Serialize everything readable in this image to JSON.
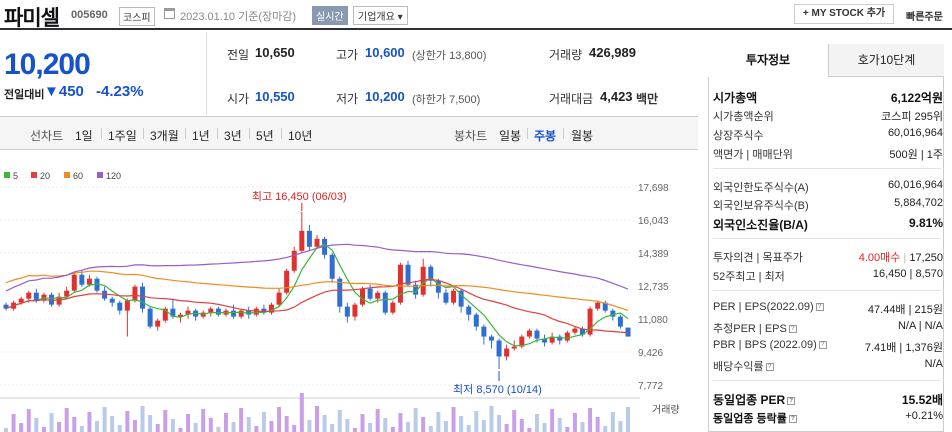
{
  "header": {
    "stock_name": "파미셀",
    "stock_code": "005690",
    "market": "코스피",
    "date_text": "2023.01.10 기준(장마감)",
    "realtime": "실시간",
    "company_overview": "기업개요 ▾",
    "mystock_button": "+ MY STOCK 추가",
    "quick_order": "빠른주문"
  },
  "price": {
    "current": "10,200",
    "change_label": "전일대비",
    "change_amount": "▼450",
    "change_percent": "-4.23%"
  },
  "summary": {
    "prev_close_label": "전일",
    "prev_close": "10,650",
    "high_label": "고가",
    "high": "10,600",
    "upper_limit": "(상한가 13,800)",
    "volume_label": "거래량",
    "volume": "426,989",
    "open_label": "시가",
    "open": "10,550",
    "low_label": "저가",
    "low": "10,200",
    "lower_limit": "(하한가 7,500)",
    "amount_label": "거래대금",
    "amount": "4,423",
    "amount_unit": "백만"
  },
  "period_tabs": {
    "line_label": "선차트",
    "line": [
      "1일",
      "1주일",
      "3개월",
      "1년",
      "3년",
      "5년",
      "10년"
    ],
    "candle_label": "봉차트",
    "candle": [
      "일봉",
      "주봉",
      "월봉"
    ],
    "selected_candle": "주봉"
  },
  "chart_data": {
    "type": "candlestick",
    "legend": [
      {
        "name": "5",
        "color": "#3ab83a"
      },
      {
        "name": "20",
        "color": "#e04040"
      },
      {
        "name": "60",
        "color": "#f08c20"
      },
      {
        "name": "120",
        "color": "#9a5cc9"
      }
    ],
    "y_ticks": [
      "17,698",
      "16,043",
      "14,389",
      "12,735",
      "11,080",
      "9,426",
      "7,772"
    ],
    "ylim": [
      7772,
      17698
    ],
    "high_annotation": "최고 16,450 (06/03)",
    "low_annotation": "최저 8,570 (10/14)",
    "volume_label": "거래량",
    "candles": [
      [
        11800,
        11600,
        11900,
        11500
      ],
      [
        11600,
        11900,
        12000,
        11500
      ],
      [
        11900,
        12100,
        12200,
        11800
      ],
      [
        12100,
        12400,
        12500,
        11900
      ],
      [
        12400,
        12000,
        12600,
        11900
      ],
      [
        12000,
        12300,
        12400,
        11900
      ],
      [
        12300,
        11800,
        12400,
        11700
      ],
      [
        11800,
        12200,
        12400,
        11700
      ],
      [
        12200,
        12500,
        12700,
        12100
      ],
      [
        12500,
        13300,
        13400,
        12400
      ],
      [
        13300,
        12800,
        13500,
        12700
      ],
      [
        12800,
        13100,
        13300,
        12700
      ],
      [
        13100,
        12500,
        13200,
        12400
      ],
      [
        12500,
        12100,
        12700,
        12000
      ],
      [
        12100,
        11900,
        12200,
        11700
      ],
      [
        11900,
        11500,
        12000,
        11300
      ],
      [
        11500,
        12000,
        12100,
        10200
      ],
      [
        12000,
        12700,
        12800,
        11900
      ],
      [
        12700,
        11600,
        12900,
        11400
      ],
      [
        11600,
        10700,
        11700,
        10600
      ],
      [
        10700,
        11000,
        11100,
        10500
      ],
      [
        11000,
        11600,
        11700,
        10900
      ],
      [
        11600,
        11200,
        12100,
        11100
      ],
      [
        11200,
        11300,
        11400,
        10900
      ],
      [
        11300,
        11500,
        11700,
        11100
      ],
      [
        11500,
        11200,
        11600,
        11000
      ],
      [
        11200,
        11400,
        11500,
        11100
      ],
      [
        11400,
        11600,
        11700,
        11200
      ],
      [
        11600,
        11300,
        11700,
        11200
      ],
      [
        11300,
        11500,
        11600,
        11200
      ],
      [
        11500,
        11200,
        11800,
        11100
      ],
      [
        11200,
        11500,
        11600,
        11100
      ],
      [
        11500,
        11300,
        11700,
        11100
      ],
      [
        11300,
        11600,
        11700,
        11200
      ],
      [
        11600,
        11400,
        11800,
        11300
      ],
      [
        11400,
        11800,
        11900,
        11300
      ],
      [
        11800,
        12400,
        12600,
        11700
      ],
      [
        12400,
        13500,
        13600,
        12300
      ],
      [
        13500,
        14500,
        14700,
        13400
      ],
      [
        14500,
        15500,
        16450,
        14400
      ],
      [
        15500,
        14700,
        15800,
        14500
      ],
      [
        14700,
        15100,
        15300,
        14600
      ],
      [
        15100,
        14300,
        15200,
        14100
      ],
      [
        14300,
        13100,
        14400,
        12900
      ],
      [
        13100,
        11700,
        13200,
        11400
      ],
      [
        11700,
        11200,
        11900,
        10900
      ],
      [
        11200,
        11800,
        11900,
        11000
      ],
      [
        11800,
        12600,
        12700,
        11700
      ],
      [
        12600,
        12100,
        12800,
        12000
      ],
      [
        12100,
        12400,
        12500,
        11900
      ],
      [
        12400,
        11400,
        12500,
        11300
      ],
      [
        11400,
        11900,
        12000,
        11300
      ],
      [
        11900,
        13800,
        13900,
        11800
      ],
      [
        13800,
        12800,
        14000,
        12700
      ],
      [
        12800,
        12300,
        13000,
        12100
      ],
      [
        12300,
        13700,
        14100,
        12200
      ],
      [
        13700,
        13000,
        13800,
        12700
      ],
      [
        13000,
        12400,
        13100,
        12100
      ],
      [
        12400,
        11900,
        12600,
        11800
      ],
      [
        11900,
        12500,
        12600,
        11800
      ],
      [
        12500,
        11700,
        12600,
        11400
      ],
      [
        11700,
        11300,
        11800,
        11000
      ],
      [
        11300,
        10700,
        11400,
        10500
      ],
      [
        10700,
        10200,
        10800,
        9800
      ],
      [
        10200,
        10000,
        10300,
        9600
      ],
      [
        10000,
        9200,
        10100,
        8570
      ],
      [
        9200,
        9600,
        9800,
        9000
      ],
      [
        9600,
        9700,
        10000,
        9500
      ],
      [
        9700,
        10200,
        10300,
        9600
      ],
      [
        10200,
        10500,
        10600,
        10100
      ],
      [
        10500,
        10100,
        10600,
        9900
      ],
      [
        10100,
        9900,
        10300,
        9700
      ],
      [
        9900,
        10200,
        10400,
        9800
      ],
      [
        10200,
        10000,
        10300,
        9800
      ],
      [
        10000,
        10400,
        10500,
        9900
      ],
      [
        10400,
        10600,
        10700,
        10300
      ],
      [
        10600,
        10300,
        10700,
        10200
      ],
      [
        10300,
        11600,
        11700,
        10200
      ],
      [
        11600,
        11900,
        12000,
        11500
      ],
      [
        11900,
        11500,
        12000,
        11400
      ],
      [
        11500,
        11200,
        11600,
        11000
      ],
      [
        11200,
        10700,
        11300,
        10600
      ],
      [
        10650,
        10200,
        10600,
        10200
      ]
    ]
  },
  "right_panel": {
    "tab_invest": "투자정보",
    "tab_order": "호가10단계",
    "market_cap_label": "시가총액",
    "market_cap": "6,122억원",
    "market_cap_rank_label": "시가총액순위",
    "market_cap_rank": "코스피 295위",
    "shares_label": "상장주식수",
    "shares": "60,016,964",
    "face_label": "액면가 | 매매단위",
    "face": "500원 | 1주",
    "foreign_limit_label": "외국인한도주식수(A)",
    "foreign_limit": "60,016,964",
    "foreign_hold_label": "외국인보유주식수(B)",
    "foreign_hold": "5,884,702",
    "foreign_ratio_label": "외국인소진율(B/A)",
    "foreign_ratio": "9.81%",
    "opinion_label": "투자의견 | 목표주가",
    "opinion": "4.00매수",
    "target": "17,250",
    "range52_label": "52주최고 | 최저",
    "range52": "16,450 | 8,570",
    "per_label": "PER | EPS(2022.09)",
    "per": "47.44배 | 215원",
    "est_per_label": "추정PER | EPS",
    "est_per": "N/A | N/A",
    "pbr_label": "PBR | BPS (2022.09)",
    "pbr": "7.41배 | 1,376원",
    "dividend_label": "배당수익률",
    "dividend": "N/A",
    "industry_per_label": "동일업종 PER",
    "industry_per": "15.52배",
    "industry_rate_label": "동일업종 등락률",
    "industry_rate": "+0.21%"
  }
}
